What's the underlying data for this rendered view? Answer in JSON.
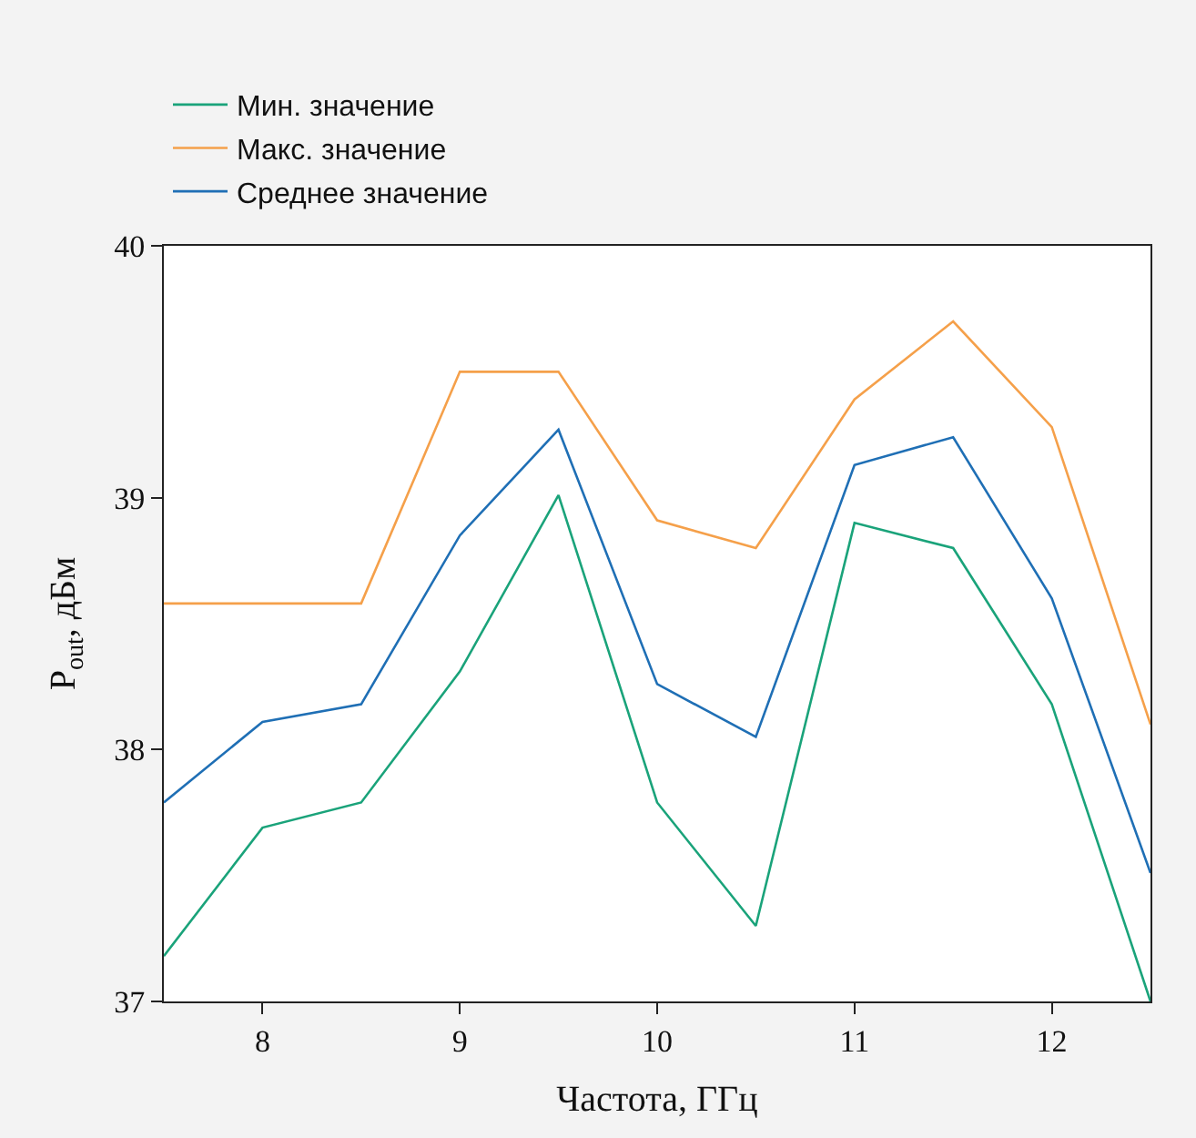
{
  "chart_data": {
    "type": "line",
    "xlabel": "Частота, ГГц",
    "ylabel": "P$_{out}$, дБм",
    "x": [
      7.5,
      8,
      8.5,
      9,
      9.5,
      10,
      10.5,
      11,
      11.5,
      12,
      12.5
    ],
    "series": [
      {
        "name": "Мин. значение",
        "color": "#1aa37a",
        "values": [
          37.18,
          37.69,
          37.79,
          38.31,
          39.01,
          37.79,
          37.3,
          38.9,
          38.8,
          38.18,
          37.0
        ]
      },
      {
        "name": "Макс. значение",
        "color": "#f5a04a",
        "values": [
          38.58,
          38.58,
          38.58,
          39.5,
          39.5,
          38.91,
          38.8,
          39.39,
          39.7,
          39.28,
          38.1
        ]
      },
      {
        "name": "Среднее значение",
        "color": "#1f6fb5",
        "values": [
          37.79,
          38.11,
          38.18,
          38.85,
          39.27,
          38.26,
          38.05,
          39.13,
          39.24,
          38.6,
          37.51
        ]
      }
    ],
    "xlim": [
      7.5,
      12.5
    ],
    "xticks": [
      8,
      9,
      10,
      11,
      12
    ],
    "ylim": [
      37,
      40
    ],
    "yticks": [
      37,
      38,
      39,
      40
    ],
    "legend": "top left",
    "marker": "none",
    "line_style": "solid"
  }
}
